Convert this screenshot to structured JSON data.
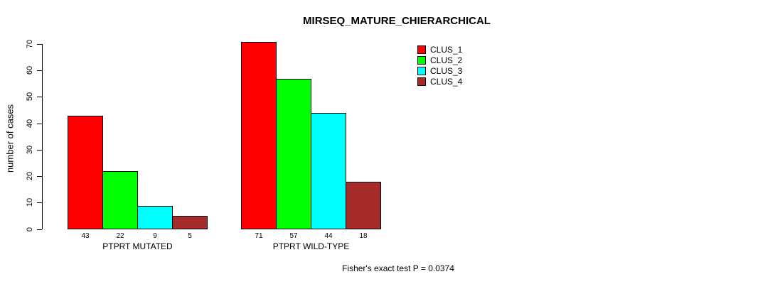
{
  "title": "MIRSEQ_MATURE_CHIERARCHICAL",
  "footer": "Fisher's exact test P = 0.0374",
  "y_axis": {
    "label": "number of cases",
    "ticks": [
      0,
      10,
      20,
      30,
      40,
      50,
      60,
      70
    ]
  },
  "legend": {
    "items": [
      {
        "label": "CLUS_1",
        "color": "#FF0000"
      },
      {
        "label": "CLUS_2",
        "color": "#00FF00"
      },
      {
        "label": "CLUS_3",
        "color": "#00FFFF"
      },
      {
        "label": "CLUS_4",
        "color": "#A52A2A"
      }
    ]
  },
  "chart_data": {
    "type": "bar",
    "title": "MIRSEQ_MATURE_CHIERARCHICAL",
    "categories": [
      "PTPRT MUTATED",
      "PTPRT WILD-TYPE"
    ],
    "series": [
      {
        "name": "CLUS_1",
        "color": "#FF0000",
        "values": [
          43,
          71
        ]
      },
      {
        "name": "CLUS_2",
        "color": "#00FF00",
        "values": [
          22,
          57
        ]
      },
      {
        "name": "CLUS_3",
        "color": "#00FFFF",
        "values": [
          9,
          44
        ]
      },
      {
        "name": "CLUS_4",
        "color": "#A52A2A",
        "values": [
          5,
          18
        ]
      }
    ],
    "xlabel": "",
    "ylabel": "number of cases",
    "ylim": [
      0,
      70
    ],
    "yticks": [
      0,
      10,
      20,
      30,
      40,
      50,
      60,
      70
    ],
    "bar_value_labels_shown": true,
    "bar_border_color": "#000000",
    "legend_position": "top-right",
    "grid": false,
    "annotation": "Fisher's exact test P = 0.0374"
  }
}
